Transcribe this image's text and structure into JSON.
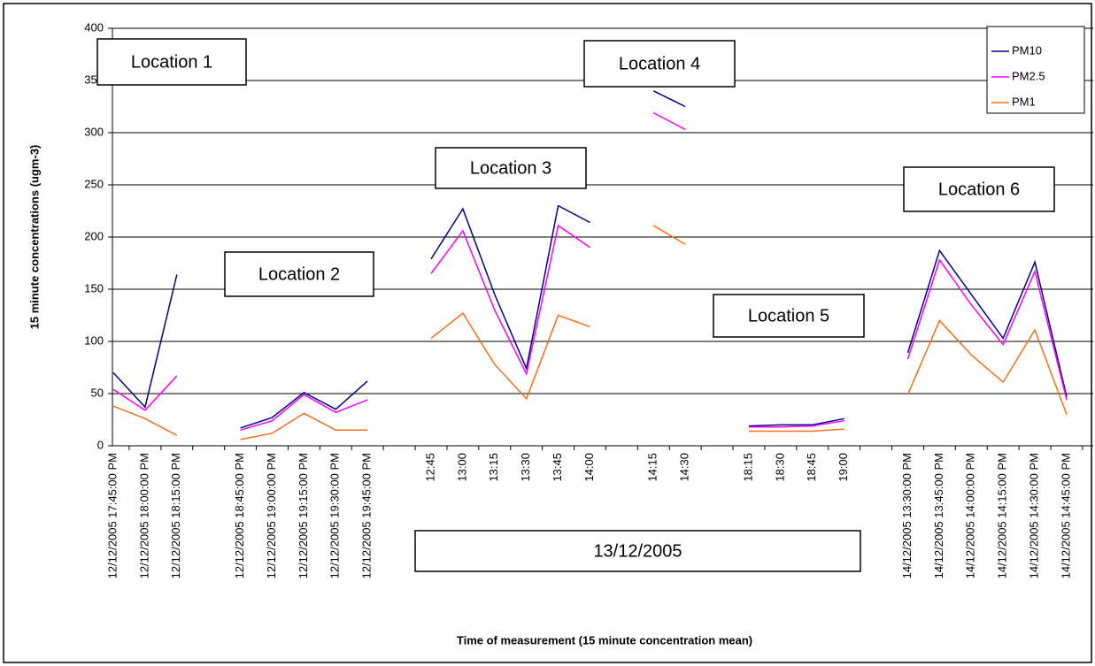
{
  "chart_data": {
    "type": "line",
    "y_label": "15 minute concentrations (ugm-3)",
    "x_label": "Time of measurement (15 minute concentration mean)",
    "categories": [
      "12/12/2005 17:45:00 PM",
      "12/12/2005 18:00:00 PM",
      "12/12/2005 18:15:00 PM",
      null,
      "12/12/2005 18:45:00 PM",
      "12/12/2005 19:00:00 PM",
      "12/12/2005 19:15:00 PM",
      "12/12/2005 19:30:00 PM",
      "12/12/2005 19:45:00 PM",
      null,
      "12:45",
      "13:00",
      "13:15",
      "13:30",
      "13:45",
      "14:00",
      null,
      "14:15",
      "14:30",
      null,
      "18:15",
      "18:30",
      "18:45",
      "19:00",
      null,
      "14/12/2005 13:30:00 PM",
      "14/12/2005 13:45:00 PM",
      "14/12/2005 14:00:00 PM",
      "14/12/2005 14:15:00 PM",
      "14/12/2005 14:30:00 PM",
      "14/12/2005 14:45:00 PM"
    ],
    "series": [
      {
        "name": "PM10",
        "color": "#000080",
        "values": [
          70,
          37,
          164,
          null,
          17,
          27,
          51,
          35,
          62,
          null,
          179,
          227,
          145,
          74,
          230,
          214,
          null,
          340,
          325,
          null,
          19,
          20,
          20,
          26,
          null,
          89,
          187,
          145,
          103,
          176,
          47
        ]
      },
      {
        "name": "PM2.5",
        "color": "#ff00ff",
        "values": [
          54,
          34,
          67,
          null,
          15,
          24,
          49,
          32,
          44,
          null,
          165,
          206,
          130,
          69,
          211,
          190,
          null,
          319,
          303,
          null,
          18,
          18,
          19,
          24,
          null,
          83,
          178,
          135,
          97,
          167,
          44
        ]
      },
      {
        "name": "PM1",
        "color": "#f07020",
        "values": [
          38,
          26,
          10,
          null,
          6,
          12,
          31,
          15,
          15,
          null,
          103,
          127,
          78,
          45,
          125,
          114,
          null,
          211,
          193,
          null,
          14,
          14,
          14,
          16,
          null,
          49,
          120,
          87,
          61,
          111,
          30
        ]
      }
    ],
    "ylim": [
      0,
      400
    ],
    "yticks": [
      0,
      50,
      100,
      150,
      200,
      250,
      300,
      350,
      400
    ],
    "grid": true,
    "legend": "top-right",
    "annotations": [
      "Location 1",
      "Location 2",
      "Location 3",
      "Location 4",
      "Location 5",
      "Location 6",
      "13/12/2005"
    ]
  }
}
